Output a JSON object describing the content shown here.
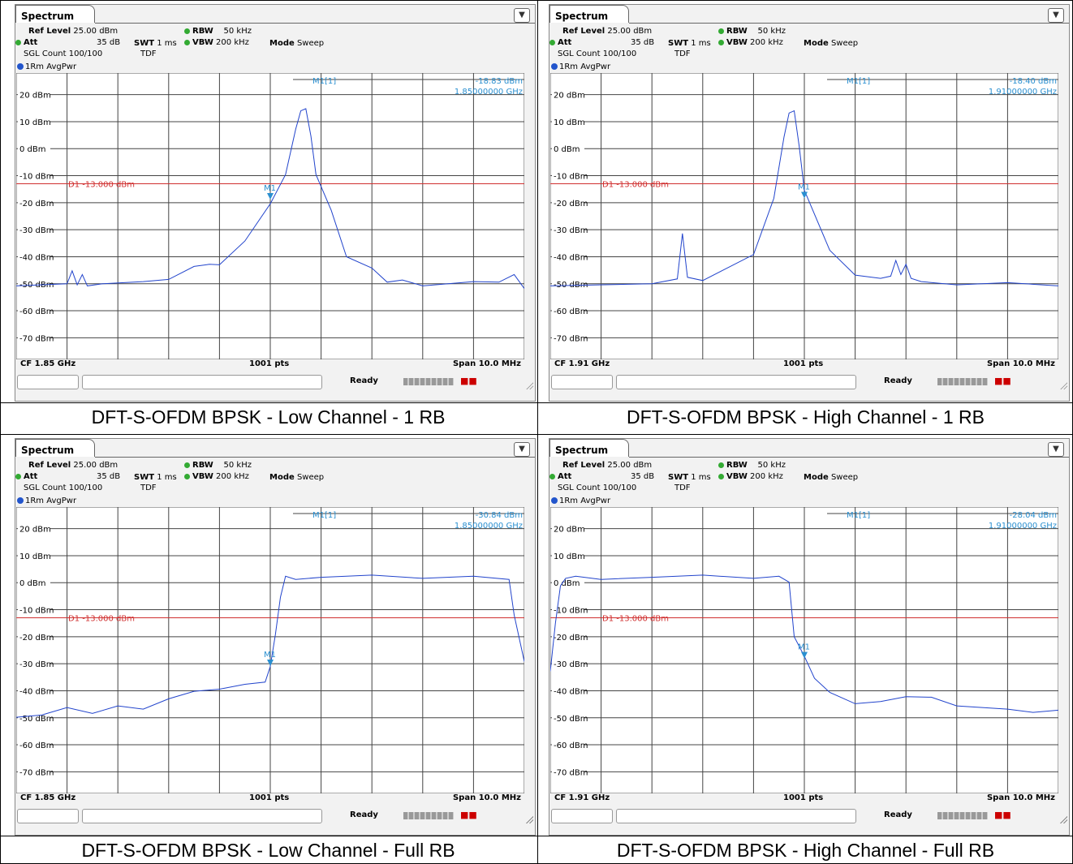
{
  "panels": [
    {
      "tab": "Spectrum",
      "ref_level_label": "Ref Level",
      "ref_level": "25.00 dBm",
      "att_label": "Att",
      "att": "35 dB",
      "swt_label": "SWT",
      "swt": "1 ms",
      "rbw_label": "RBW",
      "rbw": "50 kHz",
      "vbw_label": "VBW",
      "vbw": "200 kHz",
      "mode_label": "Mode",
      "mode": "Sweep",
      "sgl_count": "SGL Count 100/100",
      "tdf": "TDF",
      "trace": "1Rm AvgPwr",
      "marker_label": "M1[1]",
      "marker_level": "-18.83 dBm",
      "marker_freq": "1.85000000 GHz",
      "limit_label": "D1 -13.000 dBm",
      "marker_tag": "M1",
      "cf": "CF 1.85 GHz",
      "pts": "1001 pts",
      "span": "Span 10.0 MHz",
      "status": "Ready",
      "caption": "DFT-S-OFDM BPSK - Low Channel - 1 RB"
    },
    {
      "tab": "Spectrum",
      "ref_level_label": "Ref Level",
      "ref_level": "25.00 dBm",
      "att_label": "Att",
      "att": "35 dB",
      "swt_label": "SWT",
      "swt": "1 ms",
      "rbw_label": "RBW",
      "rbw": "50 kHz",
      "vbw_label": "VBW",
      "vbw": "200 kHz",
      "mode_label": "Mode",
      "mode": "Sweep",
      "sgl_count": "SGL Count 100/100",
      "tdf": "TDF",
      "trace": "1Rm AvgPwr",
      "marker_label": "M1[1]",
      "marker_level": "-18.40 dBm",
      "marker_freq": "1.91000000 GHz",
      "limit_label": "D1 -13.000 dBm",
      "marker_tag": "M1",
      "cf": "CF 1.91 GHz",
      "pts": "1001 pts",
      "span": "Span 10.0 MHz",
      "status": "Ready",
      "caption": "DFT-S-OFDM BPSK - High Channel - 1 RB"
    },
    {
      "tab": "Spectrum",
      "ref_level_label": "Ref Level",
      "ref_level": "25.00 dBm",
      "att_label": "Att",
      "att": "35 dB",
      "swt_label": "SWT",
      "swt": "1 ms",
      "rbw_label": "RBW",
      "rbw": "50 kHz",
      "vbw_label": "VBW",
      "vbw": "200 kHz",
      "mode_label": "Mode",
      "mode": "Sweep",
      "sgl_count": "SGL Count 100/100",
      "tdf": "TDF",
      "trace": "1Rm AvgPwr",
      "marker_label": "M1[1]",
      "marker_level": "-30.84 dBm",
      "marker_freq": "1.85000000 GHz",
      "limit_label": "D1 -13.000 dBm",
      "marker_tag": "M1",
      "cf": "CF 1.85 GHz",
      "pts": "1001 pts",
      "span": "Span 10.0 MHz",
      "status": "Ready",
      "caption": "DFT-S-OFDM BPSK - Low Channel - Full RB"
    },
    {
      "tab": "Spectrum",
      "ref_level_label": "Ref Level",
      "ref_level": "25.00 dBm",
      "att_label": "Att",
      "att": "35 dB",
      "swt_label": "SWT",
      "swt": "1 ms",
      "rbw_label": "RBW",
      "rbw": "50 kHz",
      "vbw_label": "VBW",
      "vbw": "200 kHz",
      "mode_label": "Mode",
      "mode": "Sweep",
      "sgl_count": "SGL Count 100/100",
      "tdf": "TDF",
      "trace": "1Rm AvgPwr",
      "marker_label": "M1[1]",
      "marker_level": "-28.04 dBm",
      "marker_freq": "1.91000000 GHz",
      "limit_label": "D1 -13.000 dBm",
      "marker_tag": "M1",
      "cf": "CF 1.91 GHz",
      "pts": "1001 pts",
      "span": "Span 10.0 MHz",
      "status": "Ready",
      "caption": "DFT-S-OFDM BPSK - High Channel - Full RB"
    }
  ],
  "chart_data": [
    {
      "type": "line",
      "yticks": [
        "20 dBm",
        "10 dBm",
        "0 dBm",
        "-10 dBm",
        "-20 dBm",
        "-30 dBm",
        "-40 dBm",
        "-50 dBm",
        "-60 dBm",
        "-70 dBm"
      ],
      "ylim": [
        -78,
        28
      ],
      "xlim": [
        -5,
        5
      ],
      "limit_line": -13,
      "marker": {
        "x": 0,
        "y": -18.83
      },
      "series": [
        {
          "x": [
            -5,
            -4.0,
            -3.9,
            -3.8,
            -3.7,
            -3.6,
            -3.3,
            -2.5,
            -2.0,
            -1.5,
            -1.2,
            -1.0,
            -0.5,
            0,
            0.3,
            0.5,
            0.6,
            0.7,
            0.8,
            0.9,
            1.2,
            1.5,
            2.0,
            2.3,
            2.6,
            3.0,
            3.5,
            4.0,
            4.5,
            4.8,
            5
          ],
          "y": [
            -50,
            -50,
            -46,
            -50,
            -47,
            -50,
            -50,
            -50,
            -48,
            -44,
            -42,
            -43,
            -35,
            -20,
            -10,
            8,
            14,
            14,
            5,
            -10,
            -22,
            -40,
            -45,
            -49,
            -49,
            -50,
            -50,
            -50,
            -49,
            -47,
            -51
          ]
        }
      ]
    },
    {
      "type": "line",
      "yticks": [
        "20 dBm",
        "10 dBm",
        "0 dBm",
        "-10 dBm",
        "-20 dBm",
        "-30 dBm",
        "-40 dBm",
        "-50 dBm",
        "-60 dBm",
        "-70 dBm"
      ],
      "ylim": [
        -78,
        28
      ],
      "xlim": [
        -5,
        5
      ],
      "limit_line": -13,
      "marker": {
        "x": 0,
        "y": -18.4
      },
      "series": [
        {
          "x": [
            -5,
            -3.0,
            -2.5,
            -2.4,
            -2.3,
            -2.0,
            -1.5,
            -1.0,
            -0.6,
            -0.4,
            -0.3,
            -0.2,
            -0.1,
            0,
            0.5,
            1.0,
            1.5,
            1.7,
            1.8,
            1.9,
            2.0,
            2.1,
            2.3,
            3.0,
            4.0,
            5
          ],
          "y": [
            -50,
            -50,
            -49,
            -31,
            -48,
            -48,
            -44,
            -40,
            -18,
            4,
            14,
            14,
            0,
            -15,
            -38,
            -46,
            -48,
            -48,
            -41,
            -47,
            -42,
            -48,
            -50,
            -50,
            -50,
            -50
          ]
        }
      ]
    },
    {
      "type": "line",
      "yticks": [
        "20 dBm",
        "10 dBm",
        "0 dBm",
        "-10 dBm",
        "-20 dBm",
        "-30 dBm",
        "-40 dBm",
        "-50 dBm",
        "-60 dBm",
        "-70 dBm"
      ],
      "ylim": [
        -78,
        28
      ],
      "xlim": [
        -5,
        5
      ],
      "limit_line": -13,
      "marker": {
        "x": 0,
        "y": -30.84
      },
      "series": [
        {
          "x": [
            -5,
            -4.5,
            -4.0,
            -3.5,
            -3.0,
            -2.5,
            -2.0,
            -1.5,
            -1.0,
            -0.5,
            -0.1,
            0,
            0.1,
            0.2,
            0.3,
            0.5,
            1.0,
            2.0,
            3.0,
            4.0,
            4.7,
            4.8,
            5
          ],
          "y": [
            -49,
            -49,
            -47,
            -48,
            -46,
            -46,
            -43,
            -41,
            -39,
            -38,
            -36,
            -31,
            -20,
            -5,
            2,
            2,
            2,
            2,
            2,
            2,
            2,
            -12,
            -30
          ]
        }
      ]
    },
    {
      "type": "line",
      "yticks": [
        "20 dBm",
        "10 dBm",
        "0 dBm",
        "-10 dBm",
        "-20 dBm",
        "-30 dBm",
        "-40 dBm",
        "-50 dBm",
        "-60 dBm",
        "-70 dBm"
      ],
      "ylim": [
        -78,
        28
      ],
      "xlim": [
        -5,
        5
      ],
      "limit_line": -13,
      "marker": {
        "x": 0,
        "y": -28.04
      },
      "series": [
        {
          "x": [
            -5,
            -4.9,
            -4.8,
            -4.7,
            -4.5,
            -4.0,
            -3.0,
            -2.0,
            -1.0,
            -0.5,
            -0.3,
            -0.2,
            0,
            0.2,
            0.5,
            1.0,
            1.5,
            2.0,
            2.5,
            3.0,
            4.0,
            4.5,
            5
          ],
          "y": [
            -32,
            -15,
            -2,
            2,
            2,
            2,
            2,
            2,
            2,
            2,
            1,
            -20,
            -28,
            -35,
            -41,
            -44,
            -44,
            -43,
            -42,
            -46,
            -46,
            -48,
            -48
          ]
        }
      ]
    }
  ]
}
